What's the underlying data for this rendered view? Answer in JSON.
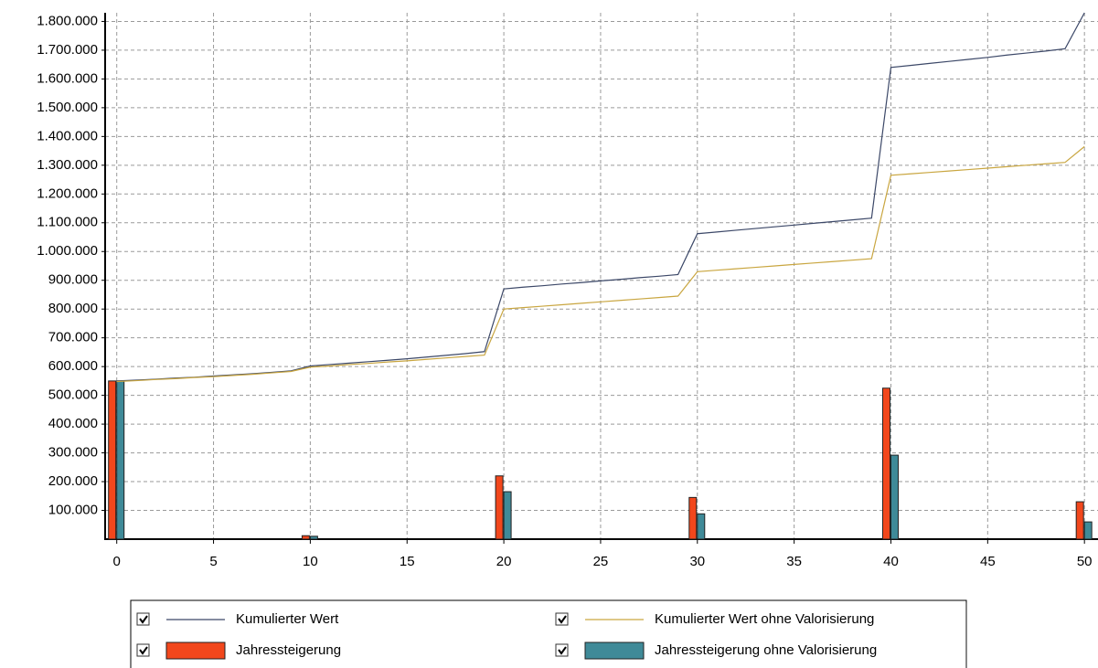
{
  "chart_data": {
    "type": "line-bar",
    "x": [
      0,
      1,
      2,
      3,
      4,
      5,
      6,
      7,
      8,
      9,
      10,
      11,
      12,
      13,
      14,
      15,
      16,
      17,
      18,
      19,
      20,
      21,
      22,
      23,
      24,
      25,
      26,
      27,
      28,
      29,
      30,
      31,
      32,
      33,
      34,
      35,
      36,
      37,
      38,
      39,
      40,
      41,
      42,
      43,
      44,
      45,
      46,
      47,
      48,
      49,
      50
    ],
    "series": [
      {
        "name": "Kumulierter Wert",
        "kind": "line",
        "color": "#3c4868",
        "values": [
          550000,
          553000,
          556000,
          560000,
          563000,
          567000,
          571000,
          575000,
          580000,
          585000,
          602000,
          607000,
          612000,
          617000,
          622000,
          627000,
          633000,
          639000,
          645000,
          652000,
          870000,
          876000,
          881000,
          887000,
          892000,
          898000,
          903000,
          909000,
          914000,
          920000,
          1062000,
          1068000,
          1074000,
          1080000,
          1086000,
          1092000,
          1098000,
          1104000,
          1110000,
          1116000,
          1640000,
          1647000,
          1654000,
          1661000,
          1668000,
          1675000,
          1683000,
          1690000,
          1697000,
          1705000,
          1830000
        ]
      },
      {
        "name": "Kumulierter Wert ohne Valorisierung",
        "kind": "line",
        "color": "#c9a640",
        "values": [
          548000,
          551000,
          555000,
          558000,
          562000,
          565000,
          569000,
          573000,
          578000,
          583000,
          598000,
          602000,
          607000,
          611000,
          616000,
          620000,
          625000,
          630000,
          635000,
          640000,
          800000,
          805000,
          810000,
          815000,
          820000,
          825000,
          830000,
          835000,
          840000,
          845000,
          930000,
          935000,
          940000,
          945000,
          950000,
          955000,
          960000,
          965000,
          970000,
          975000,
          1265000,
          1270000,
          1275000,
          1280000,
          1285000,
          1290000,
          1295000,
          1300000,
          1305000,
          1310000,
          1365000
        ]
      },
      {
        "name": "Jahressteigerung",
        "kind": "bar",
        "color": "#f2471c",
        "x": [
          0,
          10,
          20,
          30,
          40,
          50
        ],
        "values": [
          550000,
          12000,
          220000,
          145000,
          525000,
          130000
        ]
      },
      {
        "name": "Jahressteigerung ohne Valorisierung",
        "kind": "bar",
        "color": "#3f8a98",
        "x": [
          0,
          10,
          20,
          30,
          40,
          50
        ],
        "values": [
          550000,
          10000,
          165000,
          88000,
          292000,
          60000
        ]
      }
    ],
    "xlim": [
      -0.6,
      50.7
    ],
    "xticks": [
      0,
      5,
      10,
      15,
      20,
      25,
      30,
      35,
      40,
      45,
      50
    ],
    "ylim": [
      0,
      1830000
    ],
    "yticks": [
      {
        "value": 100000,
        "label": "100.000"
      },
      {
        "value": 200000,
        "label": "200.000"
      },
      {
        "value": 300000,
        "label": "300.000"
      },
      {
        "value": 400000,
        "label": "400.000"
      },
      {
        "value": 500000,
        "label": "500.000"
      },
      {
        "value": 600000,
        "label": "600.000"
      },
      {
        "value": 700000,
        "label": "700.000"
      },
      {
        "value": 800000,
        "label": "800.000"
      },
      {
        "value": 900000,
        "label": "900.000"
      },
      {
        "value": 1000000,
        "label": "1.000.000"
      },
      {
        "value": 1100000,
        "label": "1.100.000"
      },
      {
        "value": 1200000,
        "label": "1.200.000"
      },
      {
        "value": 1300000,
        "label": "1.300.000"
      },
      {
        "value": 1400000,
        "label": "1.400.000"
      },
      {
        "value": 1500000,
        "label": "1.500.000"
      },
      {
        "value": 1600000,
        "label": "1.600.000"
      },
      {
        "value": 1700000,
        "label": "1.700.000"
      },
      {
        "value": 1800000,
        "label": "1.800.000"
      }
    ],
    "grid": true,
    "legend": "bottom"
  }
}
